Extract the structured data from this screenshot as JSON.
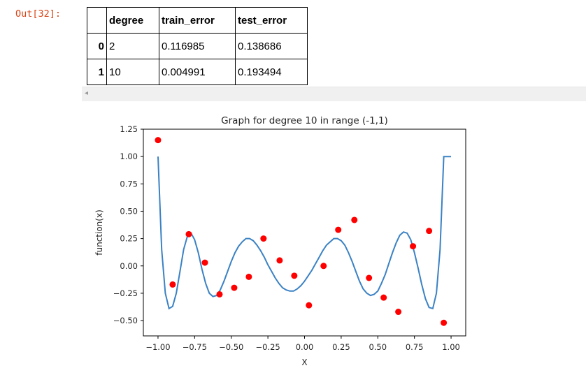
{
  "cell": {
    "prompt": "Out[32]:"
  },
  "table": {
    "columns": [
      "degree",
      "train_error",
      "test_error"
    ],
    "rows": [
      {
        "index": "0",
        "values": [
          "2",
          "0.116985",
          "0.138686"
        ]
      },
      {
        "index": "1",
        "values": [
          "10",
          "0.004991",
          "0.193494"
        ]
      }
    ]
  },
  "scrollbar": {
    "left_arrow": "◂"
  },
  "chart_data": {
    "type": "scatter",
    "title": "Graph for degree 10 in range (-1,1)",
    "xlabel": "X",
    "ylabel": "function(x)",
    "xlim": [
      -1.1,
      1.1
    ],
    "ylim": [
      -0.64,
      1.25
    ],
    "xticks": [
      -1.0,
      -0.75,
      -0.5,
      -0.25,
      0.0,
      0.25,
      0.5,
      0.75,
      1.0
    ],
    "xtick_labels": [
      "−1.00",
      "−0.75",
      "−0.50",
      "−0.25",
      "0.00",
      "0.25",
      "0.50",
      "0.75",
      "1.00"
    ],
    "yticks": [
      1.25,
      1.0,
      0.75,
      0.5,
      0.25,
      0.0,
      -0.25,
      -0.5
    ],
    "ytick_labels": [
      "1.25",
      "1.00",
      "0.75",
      "0.50",
      "0.25",
      "0.00",
      "−0.25",
      "−0.50"
    ],
    "grid": false,
    "points": {
      "color": "#ff0000",
      "x": [
        -1.0,
        -0.9,
        -0.79,
        -0.68,
        -0.58,
        -0.48,
        -0.38,
        -0.28,
        -0.17,
        -0.07,
        0.03,
        0.13,
        0.23,
        0.34,
        0.44,
        0.54,
        0.64,
        0.74,
        0.85,
        0.95
      ],
      "y": [
        1.15,
        -0.17,
        0.29,
        0.03,
        -0.26,
        -0.2,
        -0.1,
        0.25,
        0.05,
        -0.09,
        -0.36,
        0.0,
        0.33,
        0.42,
        -0.11,
        -0.29,
        -0.42,
        0.18,
        0.32,
        -0.52
      ]
    },
    "curve": {
      "color": "#3b82c4",
      "x": [
        -1.0,
        -0.975,
        -0.95,
        -0.925,
        -0.9,
        -0.875,
        -0.85,
        -0.825,
        -0.8,
        -0.775,
        -0.75,
        -0.725,
        -0.7,
        -0.675,
        -0.65,
        -0.625,
        -0.6,
        -0.575,
        -0.55,
        -0.525,
        -0.5,
        -0.475,
        -0.45,
        -0.425,
        -0.4,
        -0.375,
        -0.35,
        -0.325,
        -0.3,
        -0.275,
        -0.25,
        -0.225,
        -0.2,
        -0.175,
        -0.15,
        -0.125,
        -0.1,
        -0.075,
        -0.05,
        -0.025,
        0.0,
        0.025,
        0.05,
        0.075,
        0.1,
        0.125,
        0.15,
        0.175,
        0.2,
        0.225,
        0.25,
        0.275,
        0.3,
        0.325,
        0.35,
        0.375,
        0.4,
        0.425,
        0.45,
        0.475,
        0.5,
        0.525,
        0.55,
        0.575,
        0.6,
        0.625,
        0.65,
        0.675,
        0.7,
        0.725,
        0.75,
        0.775,
        0.8,
        0.825,
        0.85,
        0.875,
        0.9,
        0.925,
        0.95,
        0.975,
        1.0
      ],
      "y": [
        1.0,
        0.15,
        -0.25,
        -0.39,
        -0.37,
        -0.25,
        -0.05,
        0.15,
        0.27,
        0.3,
        0.24,
        0.12,
        -0.03,
        -0.16,
        -0.25,
        -0.28,
        -0.27,
        -0.22,
        -0.14,
        -0.05,
        0.04,
        0.12,
        0.18,
        0.22,
        0.25,
        0.25,
        0.23,
        0.19,
        0.14,
        0.08,
        0.01,
        -0.05,
        -0.11,
        -0.16,
        -0.2,
        -0.22,
        -0.23,
        -0.23,
        -0.21,
        -0.18,
        -0.14,
        -0.09,
        -0.04,
        0.02,
        0.08,
        0.14,
        0.19,
        0.22,
        0.25,
        0.25,
        0.23,
        0.19,
        0.12,
        0.04,
        -0.05,
        -0.14,
        -0.21,
        -0.25,
        -0.27,
        -0.26,
        -0.23,
        -0.16,
        -0.08,
        0.02,
        0.12,
        0.21,
        0.28,
        0.31,
        0.3,
        0.24,
        0.12,
        -0.02,
        -0.17,
        -0.3,
        -0.38,
        -0.39,
        -0.25,
        0.15,
        1.0,
        1.0,
        1.0
      ]
    }
  }
}
